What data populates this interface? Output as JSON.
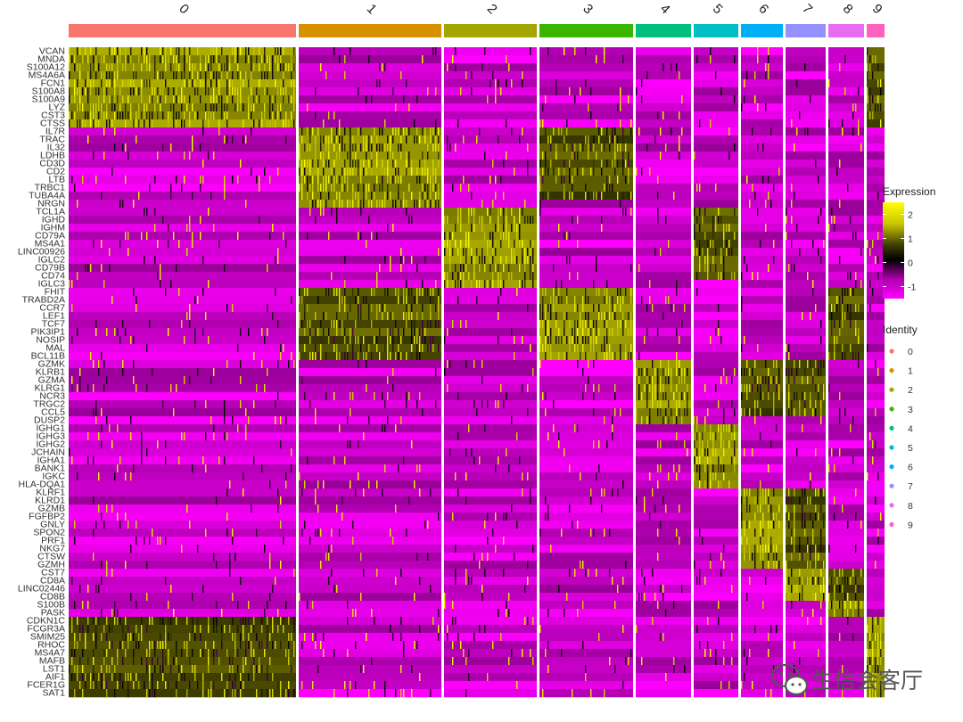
{
  "chart_data": {
    "type": "heatmap",
    "clusters": [
      "0",
      "1",
      "2",
      "3",
      "4",
      "5",
      "6",
      "7",
      "8",
      "9"
    ],
    "cluster_widths": [
      255,
      160,
      104,
      105,
      62,
      50,
      47,
      45,
      40,
      20
    ],
    "cluster_colors": [
      "#F8766D",
      "#D89000",
      "#A3A500",
      "#39B600",
      "#00BF7D",
      "#00BFC4",
      "#00B0F6",
      "#9590FF",
      "#E76BF3",
      "#FF62BC"
    ],
    "genes": [
      "VCAN",
      "MNDA",
      "S100A12",
      "MS4A6A",
      "FCN1",
      "S100A8",
      "S100A9",
      "LYZ",
      "CST3",
      "CTSS",
      "IL7R",
      "TRAC",
      "IL32",
      "LDHB",
      "CD3D",
      "CD2",
      "LTB",
      "TRBC1",
      "TUBA4A",
      "NRGN",
      "TCL1A",
      "IGHD",
      "IGHM",
      "CD79A",
      "MS4A1",
      "LINC00926",
      "IGLC2",
      "CD79B",
      "CD74",
      "IGLC3",
      "FHIT",
      "TRABD2A",
      "CCR7",
      "LEF1",
      "TCF7",
      "PIK3IP1",
      "NOSIP",
      "MAL",
      "BCL11B",
      "GZMK",
      "KLRB1",
      "GZMA",
      "KLRG1",
      "NCR3",
      "TRGC2",
      "CCL5",
      "DUSP2",
      "IGHG1",
      "IGHG3",
      "IGHG2",
      "JCHAIN",
      "IGHA1",
      "BANK1",
      "IGKC",
      "HLA-DQA1",
      "KLRF1",
      "KLRD1",
      "GZMB",
      "FGFBP2",
      "GNLY",
      "SPON2",
      "PRF1",
      "NKG7",
      "CTSW",
      "GZMH",
      "CST7",
      "CD8A",
      "LINC02446",
      "CD8B",
      "S100B",
      "PASK",
      "CDKN1C",
      "FCGR3A",
      "SMIM25",
      "RHOC",
      "MS4A7",
      "MAFB",
      "LST1",
      "AIF1",
      "FCER1G",
      "SAT1"
    ],
    "marker_gene_ranges": [
      [
        0,
        9
      ],
      [
        10,
        19
      ],
      [
        20,
        29
      ],
      [
        30,
        38
      ],
      [
        39,
        46
      ],
      [
        47,
        54
      ],
      [
        55,
        64
      ],
      [
        65,
        68
      ],
      [
        69,
        70
      ],
      [
        71,
        80
      ]
    ],
    "extra_high": {
      "1": [
        30,
        31,
        32,
        33,
        34,
        35,
        36,
        37,
        38
      ],
      "3": [
        10,
        11,
        12,
        13,
        14,
        15,
        16,
        17,
        18
      ],
      "5": [
        20,
        21,
        22,
        23,
        24,
        25,
        26,
        27,
        28
      ],
      "6": [
        39,
        40,
        41,
        42,
        43,
        44,
        45
      ],
      "7": [
        39,
        40,
        41,
        42,
        43,
        44,
        45,
        55,
        56,
        57,
        58,
        59,
        60,
        61,
        62,
        63,
        64
      ],
      "8": [
        30,
        31,
        32,
        33,
        34,
        35,
        36,
        37,
        38,
        65,
        66,
        67,
        68
      ],
      "9": [
        0,
        1,
        2,
        3,
        4,
        5,
        6,
        7,
        8,
        9
      ],
      "0": [
        71,
        72,
        73,
        74,
        75,
        76,
        77,
        78,
        79,
        80
      ]
    },
    "color_scale": {
      "low": "#FF00FF",
      "mid": "#000000",
      "high": "#FFFF00",
      "min": -1.5,
      "max": 2.5
    },
    "legend_expression": {
      "title": "Expression",
      "ticks": [
        2,
        1,
        0,
        -1
      ]
    },
    "legend_identity": {
      "title": "Identity",
      "entries": [
        "0",
        "1",
        "2",
        "3",
        "4",
        "5",
        "6",
        "7",
        "8",
        "9"
      ]
    }
  },
  "watermark": {
    "text": "生信会客厅"
  }
}
